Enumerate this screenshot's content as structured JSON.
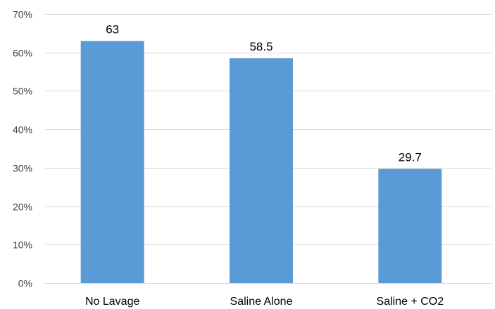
{
  "chart_data": {
    "type": "bar",
    "categories": [
      "No Lavage",
      "Saline Alone",
      "Saline + CO2"
    ],
    "values": [
      63,
      58.5,
      29.7
    ],
    "data_labels": [
      "63",
      "58.5",
      "29.7"
    ],
    "ylim": [
      0,
      70
    ],
    "yticks": [
      0,
      10,
      20,
      30,
      40,
      50,
      60,
      70
    ],
    "ytick_labels": [
      "0%",
      "10%",
      "20%",
      "30%",
      "40%",
      "50%",
      "60%",
      "70%"
    ],
    "grid": true,
    "legend": "none",
    "bar_color": "#5b9bd5"
  }
}
